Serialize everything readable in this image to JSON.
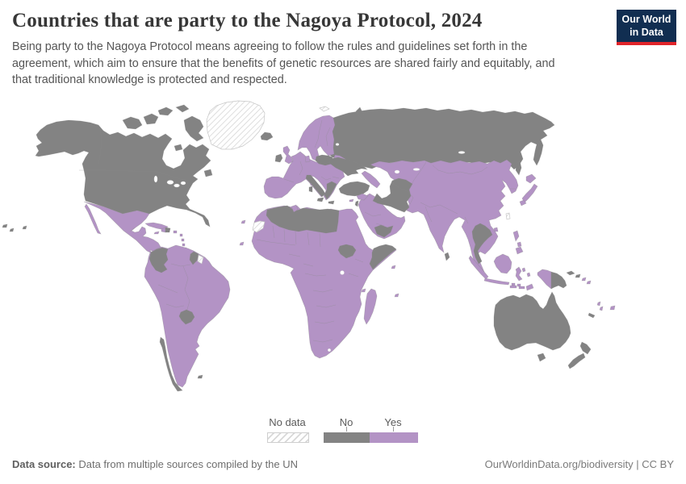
{
  "header": {
    "title": "Countries that are party to the Nagoya Protocol, 2024",
    "subtitle": "Being party to the Nagoya Protocol means agreeing to follow the rules and guidelines set forth in the agreement, which aim to ensure that the benefits of genetic resources are shared fairly and equitably, and that traditional knowledge is protected and respected.",
    "logo": {
      "line1": "Our World",
      "line2": "in Data",
      "bg_color": "#112e51",
      "accent_color": "#e0242a"
    }
  },
  "legend": {
    "items": [
      {
        "label": "No data",
        "status": "nodata"
      },
      {
        "label": "No",
        "status": "no"
      },
      {
        "label": "Yes",
        "status": "yes"
      }
    ]
  },
  "map": {
    "year": "2024",
    "colors": {
      "yes": "#b393c5",
      "no": "#838383",
      "nodata_bg": "#ffffff",
      "nodata_hatch": "#d8d8d8",
      "border": "#8a8a8a"
    },
    "regions": {
      "north_america": "no",
      "greenland": "nodata",
      "mexico_central_america": "yes",
      "caribbean": "yes",
      "hispaniola_east": "no",
      "south_america": "yes",
      "colombia": "no",
      "guyana": "no",
      "suriname": "nodata",
      "paraguay": "no",
      "chile": "no",
      "falkland_islands": "no",
      "europe": "yes",
      "iceland": "no",
      "ireland": "no",
      "poland": "no",
      "ukraine": "no",
      "italy": "no",
      "greece": "no",
      "turkey": "no",
      "cyprus": "yes",
      "caucasus": "yes",
      "svalbard": "nodata",
      "russia": "no",
      "asia": "yes",
      "iran_turkmenistan": "no",
      "arabia": "yes",
      "syria": "yes",
      "israel": "no",
      "yemen": "no",
      "thailand_laos": "no",
      "sri_lanka": "no",
      "japan": "yes",
      "taiwan": "nodata",
      "philippines": "yes",
      "indonesia": "yes",
      "papua_new_guinea": "no",
      "pacific_islands": "yes",
      "new_caledonia": "no",
      "australia": "no",
      "new_zealand": "no",
      "africa": "yes",
      "algeria_libya": "no",
      "tunisia": "yes",
      "western_sahara": "nodata",
      "south_sudan": "no",
      "somalia": "no",
      "madagascar": "yes",
      "indian_ocean_islands": "yes"
    }
  },
  "footer": {
    "source_label": "Data source:",
    "source_text": " Data from multiple sources compiled by the UN",
    "credit": "OurWorldinData.org/biodiversity | CC BY"
  }
}
